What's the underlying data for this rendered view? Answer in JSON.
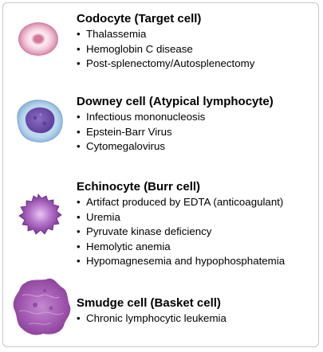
{
  "entries": [
    {
      "title": "Codocyte (Target cell)",
      "image": "target-cell-image",
      "items": [
        "Thalassemia",
        "Hemoglobin C disease",
        "Post-splenectomy/Autosplenectomy"
      ]
    },
    {
      "title": "Downey cell (Atypical lymphocyte)",
      "image": "atypical-lymphocyte-image",
      "items": [
        "Infectious mononucleosis",
        "Epstein-Barr Virus",
        "Cytomegalovirus"
      ]
    },
    {
      "title": "Echinocyte (Burr cell)",
      "image": "burr-cell-image",
      "items": [
        "Artifact produced by EDTA (anticoagulant)",
        "Uremia",
        "Pyruvate kinase deficiency",
        "Hemolytic anemia",
        "Hypomagnesemia and hypophosphatemia"
      ]
    },
    {
      "title": "Smudge cell (Basket cell)",
      "image": "smudge-cell-image",
      "items": [
        "Chronic lymphocytic leukemia"
      ]
    }
  ],
  "colors": {
    "target_cell": "#e8a9c0",
    "lymphocyte_cytoplasm": "#b9d6ec",
    "lymphocyte_nucleus": "#6a4ea8",
    "burr_cell": "#9a4fb2",
    "smudge_cell": "#9c4fa8",
    "border": "#c8c8c8"
  }
}
